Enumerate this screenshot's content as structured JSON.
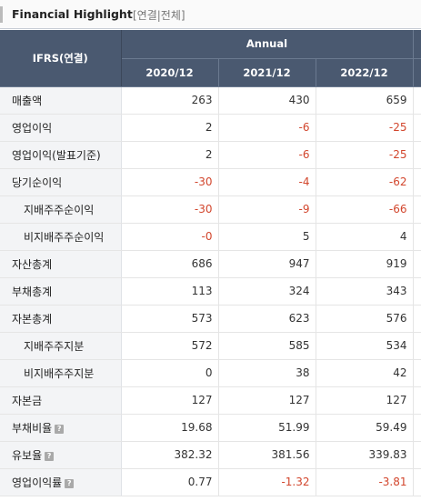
{
  "header": {
    "title": "Financial Highlight",
    "subtitle": "[연결|전체]"
  },
  "table": {
    "corner_label": "IFRS(연결)",
    "period_group": "Annual",
    "years": [
      "2020/12",
      "2021/12",
      "2022/12"
    ],
    "rows": [
      {
        "label": "매출액",
        "values": [
          "263",
          "430",
          "659"
        ]
      },
      {
        "label": "영업이익",
        "values": [
          "2",
          "-6",
          "-25"
        ]
      },
      {
        "label": "영업이익(발표기준)",
        "values": [
          "2",
          "-6",
          "-25"
        ]
      },
      {
        "label": "당기순이익",
        "values": [
          "-30",
          "-4",
          "-62"
        ]
      },
      {
        "label": "지배주주순이익",
        "values": [
          "-30",
          "-9",
          "-66"
        ]
      },
      {
        "label": "비지배주주순이익",
        "values": [
          "-0",
          "5",
          "4"
        ]
      },
      {
        "label": "자산총계",
        "values": [
          "686",
          "947",
          "919"
        ]
      },
      {
        "label": "부채총계",
        "values": [
          "113",
          "324",
          "343"
        ]
      },
      {
        "label": "자본총계",
        "values": [
          "573",
          "623",
          "576"
        ]
      },
      {
        "label": "지배주주지분",
        "values": [
          "572",
          "585",
          "534"
        ]
      },
      {
        "label": "비지배주주지분",
        "values": [
          "0",
          "38",
          "42"
        ]
      },
      {
        "label": "자본금",
        "values": [
          "127",
          "127",
          "127"
        ]
      },
      {
        "label": "부채비율",
        "values": [
          "19.68",
          "51.99",
          "59.49"
        ]
      },
      {
        "label": "유보율",
        "values": [
          "382.32",
          "381.56",
          "339.83"
        ]
      },
      {
        "label": "영업이익률",
        "values": [
          "0.77",
          "-1.32",
          "-3.81"
        ]
      }
    ]
  },
  "colors": {
    "header_bg": "#4a5970",
    "label_bg": "#f3f4f6",
    "negative": "#d2462d"
  }
}
